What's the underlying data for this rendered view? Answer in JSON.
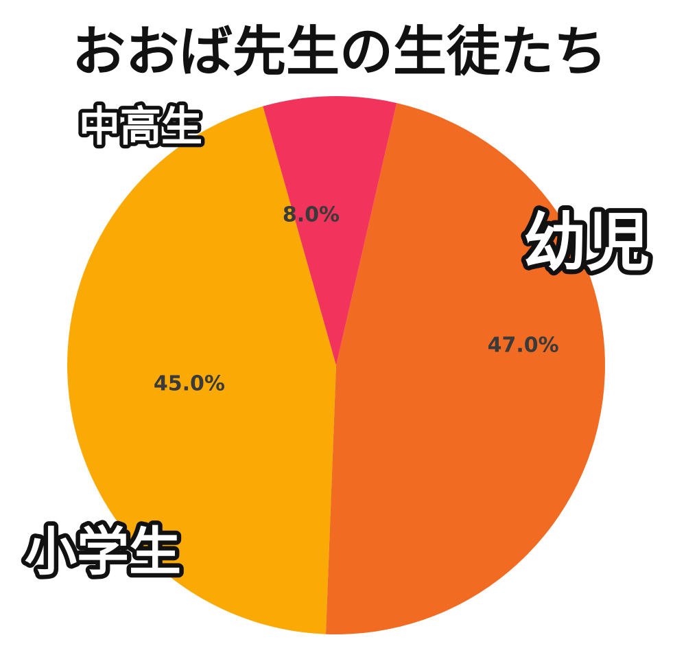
{
  "chart_data": {
    "type": "pie",
    "title": "おおば先生の生徒たち",
    "categories": [
      "幼児",
      "小学生",
      "中高生"
    ],
    "values": [
      47.0,
      45.0,
      8.0
    ],
    "value_labels": [
      "47.0%",
      "45.0%",
      "8.0%"
    ],
    "colors": [
      "#F26B22",
      "#FBAA05",
      "#F2335B"
    ],
    "start_direction": "top, slightly right of 12 o'clock",
    "direction": "clockwise",
    "legend": "none (labels placed beside slices)"
  }
}
